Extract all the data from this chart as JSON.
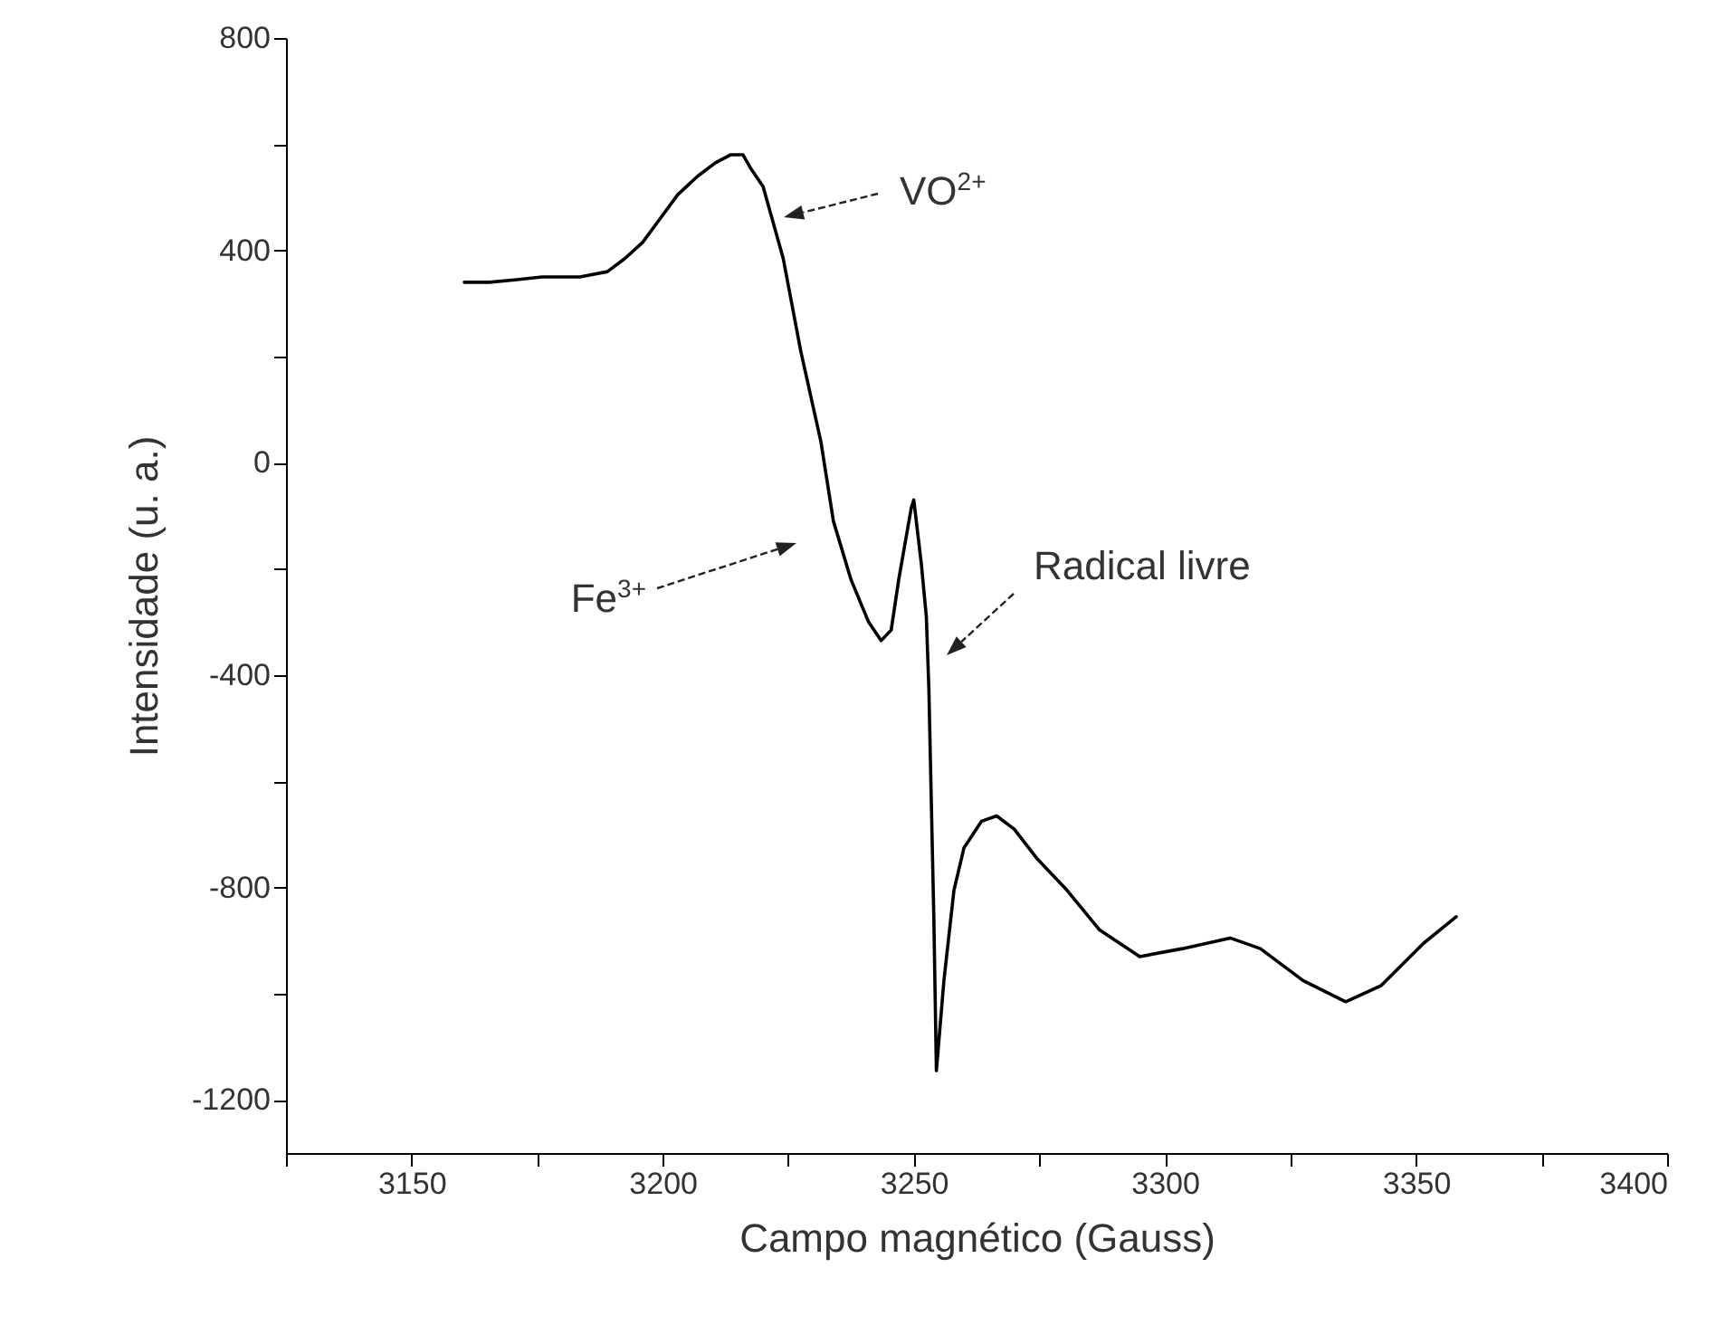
{
  "chart_data": {
    "type": "line",
    "xlabel": "Campo magnético (Gauss)",
    "ylabel": "Intensidade (u. a.)",
    "xlim": [
      3125,
      3400
    ],
    "xticks": [
      {
        "value": 3125,
        "label": null
      },
      3150,
      {
        "value": 3175,
        "label": null
      },
      3200,
      {
        "value": 3225,
        "label": null
      },
      3250,
      {
        "value": 3275,
        "label": null
      },
      3300,
      {
        "value": 3325,
        "label": null
      },
      3350,
      {
        "value": 3375,
        "label": null
      },
      3400
    ],
    "ylim": [
      -1300,
      800
    ],
    "yticks": [
      -1200,
      {
        "value": -1000,
        "label": null
      },
      -800,
      {
        "value": -600,
        "label": null
      },
      -400,
      {
        "value": -200,
        "label": null
      },
      0,
      {
        "value": 200,
        "label": null
      },
      400,
      {
        "value": 600,
        "label": null
      },
      800
    ],
    "grid": false,
    "marker": "none",
    "line_style": "solid",
    "series": [
      {
        "color": "#000000",
        "x": [
          3160.5,
          3165.5,
          3171,
          3176,
          3183.5,
          3189,
          3192.5,
          3196,
          3199.5,
          3203,
          3207,
          3210.5,
          3213.5,
          3216,
          3217.5,
          3220,
          3224,
          3227.5,
          3231.5,
          3234,
          3237.5,
          3241,
          3243.5,
          3245.5,
          3247,
          3249.5,
          3250,
          3251.5,
          3252.5,
          3253,
          3254,
          3254.5,
          3256,
          3258,
          3260,
          3263.5,
          3266.5,
          3270,
          3274.5,
          3280.5,
          3287,
          3295,
          3303.5,
          3313,
          3319,
          3327.5,
          3336,
          3343,
          3351.5,
          3358
        ],
        "values": [
          340,
          340,
          345,
          350,
          350,
          360,
          385,
          415,
          460,
          505,
          540,
          565,
          580,
          580,
          555,
          520,
          385,
          210,
          40,
          -110,
          -220,
          -300,
          -335,
          -315,
          -220,
          -85,
          -70,
          -190,
          -290,
          -425,
          -860,
          -1145,
          -975,
          -805,
          -725,
          -675,
          -665,
          -690,
          -745,
          -805,
          -880,
          -930,
          -915,
          -895,
          -915,
          -975,
          -1015,
          -985,
          -905,
          -855
        ]
      }
    ],
    "annotations": [
      "VO$^{2+}$",
      "Fe$^{3+}$",
      "Radical livre"
    ]
  }
}
